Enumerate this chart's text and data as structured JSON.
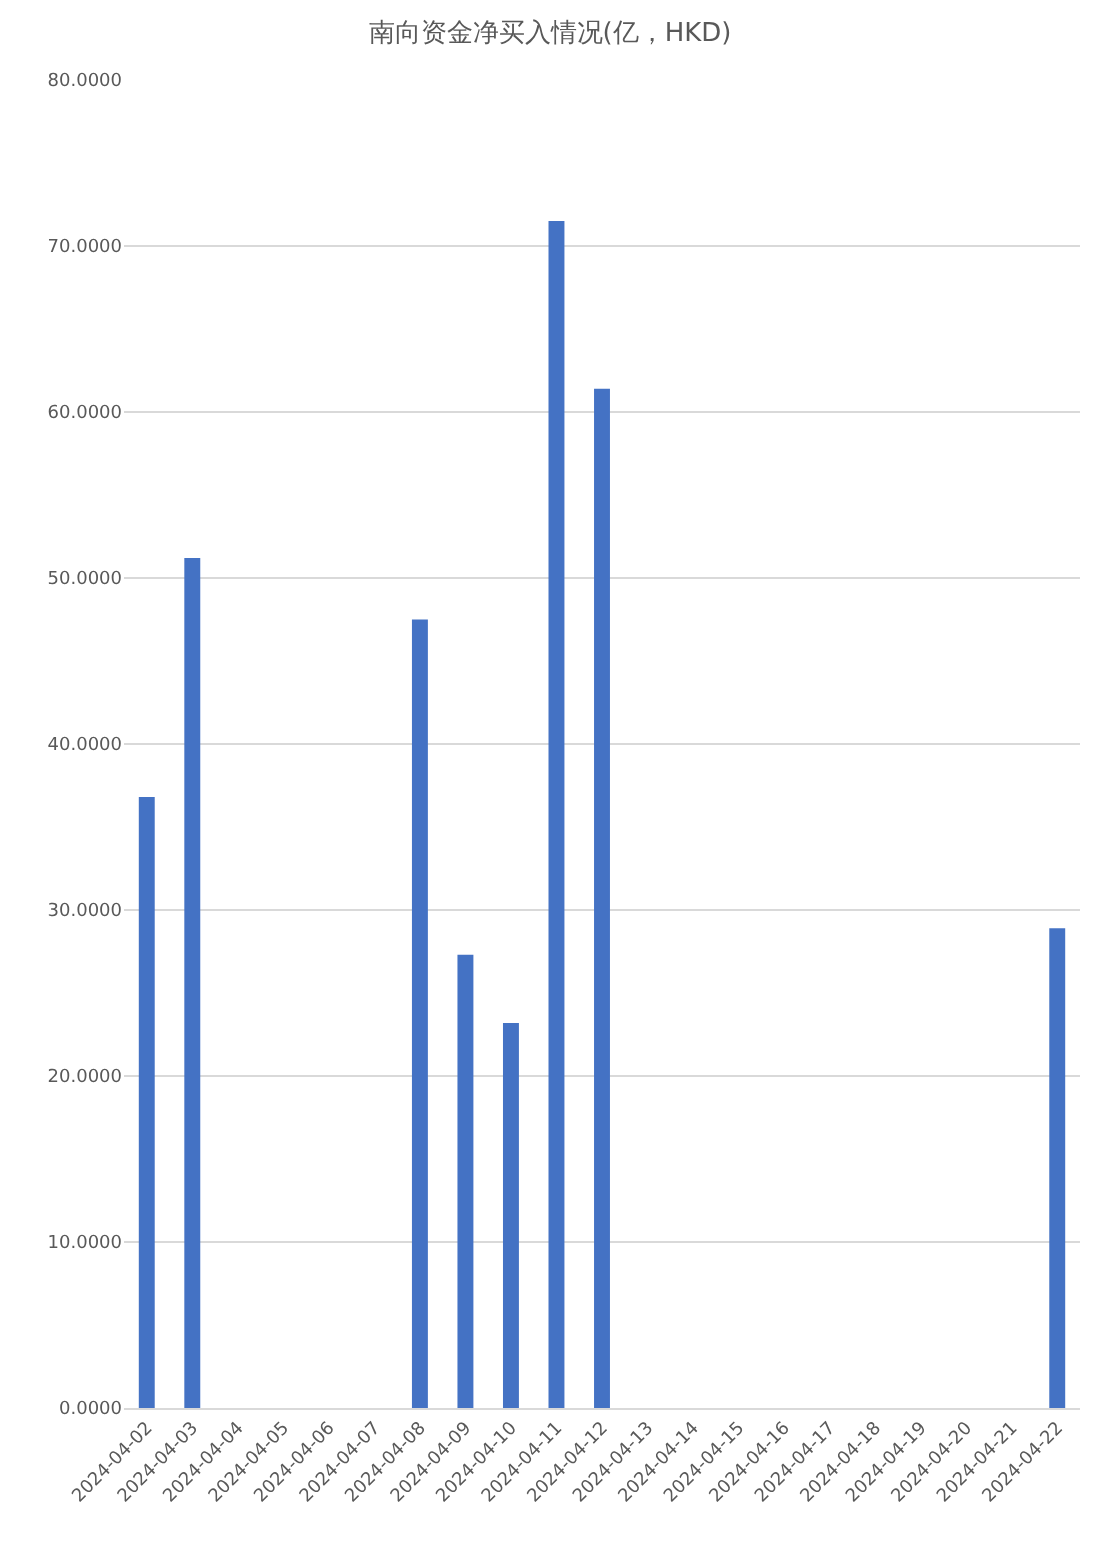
{
  "chart_data": {
    "type": "bar",
    "title": "南向资金净买入情况(亿，HKD)",
    "categories": [
      "2024-04-02",
      "2024-04-03",
      "2024-04-04",
      "2024-04-05",
      "2024-04-06",
      "2024-04-07",
      "2024-04-08",
      "2024-04-09",
      "2024-04-10",
      "2024-04-11",
      "2024-04-12",
      "2024-04-13",
      "2024-04-14",
      "2024-04-15",
      "2024-04-16",
      "2024-04-17",
      "2024-04-18",
      "2024-04-19",
      "2024-04-20",
      "2024-04-21",
      "2024-04-22"
    ],
    "values": [
      36.8,
      51.2,
      null,
      null,
      null,
      null,
      47.5,
      27.3,
      23.2,
      71.5,
      61.4,
      null,
      null,
      null,
      null,
      null,
      null,
      null,
      null,
      null,
      28.9
    ],
    "color": "#4472c4",
    "ylim": [
      0,
      80
    ],
    "yticks": [
      {
        "value": 0,
        "label": "0.0000"
      },
      {
        "value": 10,
        "label": "10.0000"
      },
      {
        "value": 20,
        "label": "20.0000"
      },
      {
        "value": 30,
        "label": "30.0000"
      },
      {
        "value": 40,
        "label": "40.0000"
      },
      {
        "value": 50,
        "label": "50.0000"
      },
      {
        "value": 60,
        "label": "60.0000"
      },
      {
        "value": 70,
        "label": "70.0000"
      },
      {
        "value": 80,
        "label": "80.0000"
      }
    ],
    "grid": "y"
  }
}
